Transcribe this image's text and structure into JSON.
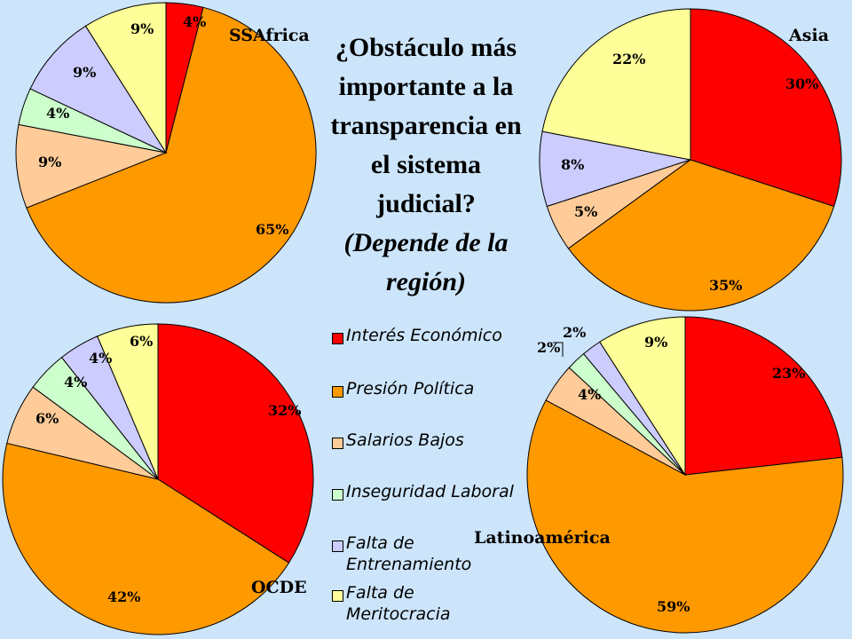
{
  "title": {
    "line1": "¿Obstáculo más importante a la transparencia en el sistema judicial?",
    "line2": "(Depende de la región)"
  },
  "legend": [
    {
      "label": "Interés Económico",
      "color": "#ff0000"
    },
    {
      "label": "Presión Política",
      "color": "#ff9900"
    },
    {
      "label": "Salarios Bajos",
      "color": "#ffcc99"
    },
    {
      "label": "Inseguridad Laboral",
      "color": "#ccffcc"
    },
    {
      "label": "Falta de Entrenamiento",
      "color": "#ccccff"
    },
    {
      "label": "Falta de Meritocracia",
      "color": "#ffff99"
    }
  ],
  "chart_data": [
    {
      "type": "pie",
      "title": "SSAfrica",
      "categories": [
        "Interés Económico",
        "Presión Política",
        "Salarios Bajos",
        "Inseguridad Laboral",
        "Falta de Entrenamiento",
        "Falta de Meritocracia"
      ],
      "values": [
        4,
        65,
        9,
        4,
        9,
        9
      ],
      "labels": [
        "4%",
        "65%",
        "9%",
        "4%",
        "9%",
        "9%"
      ]
    },
    {
      "type": "pie",
      "title": "Asia",
      "categories": [
        "Interés Económico",
        "Presión Política",
        "Salarios Bajos",
        "Inseguridad Laboral",
        "Falta de Entrenamiento",
        "Falta de Meritocracia"
      ],
      "values": [
        30,
        35,
        5,
        0,
        8,
        22
      ],
      "labels": [
        "30%",
        "35%",
        "5%",
        "",
        "8%",
        "22%"
      ]
    },
    {
      "type": "pie",
      "title": "OCDE",
      "categories": [
        "Interés Económico",
        "Presión Política",
        "Salarios Bajos",
        "Inseguridad Laboral",
        "Falta de Entrenamiento",
        "Falta de Meritocracia"
      ],
      "values": [
        32,
        42,
        6,
        4,
        4,
        6
      ],
      "labels": [
        "32%",
        "42%",
        "6%",
        "4%",
        "4%",
        "6%"
      ]
    },
    {
      "type": "pie",
      "title": "Latinoamérica",
      "categories": [
        "Interés Económico",
        "Presión Política",
        "Salarios Bajos",
        "Inseguridad Laboral",
        "Falta de Entrenamiento",
        "Falta de Meritocracia"
      ],
      "values": [
        23,
        59,
        4,
        2,
        2,
        9
      ],
      "labels": [
        "23%",
        "59%",
        "4%",
        "2%",
        "2%",
        "9%"
      ]
    }
  ]
}
